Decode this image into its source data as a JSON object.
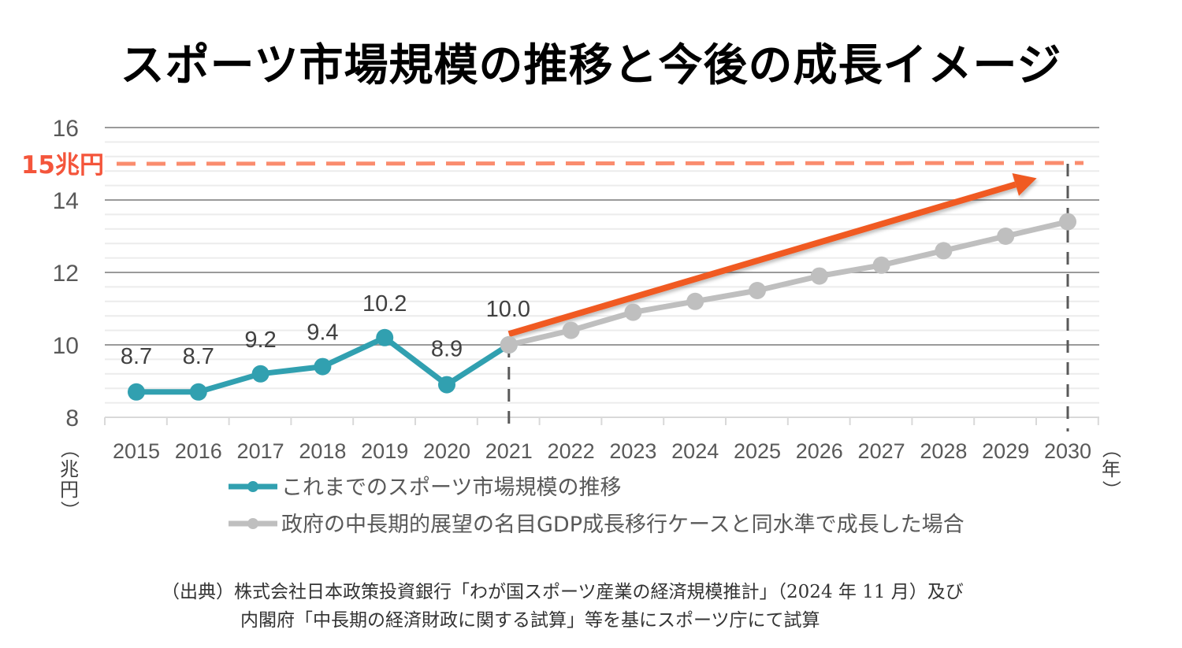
{
  "title": "スポーツ市場規模の推移と今後の成長イメージ",
  "chart_data": {
    "type": "line",
    "title": "スポーツ市場規模の推移と今後の成長イメージ",
    "xlabel": "（年）",
    "ylabel": "（兆円）",
    "x": [
      2015,
      2016,
      2017,
      2018,
      2019,
      2020,
      2021,
      2022,
      2023,
      2024,
      2025,
      2026,
      2027,
      2028,
      2029,
      2030
    ],
    "ylim": [
      8,
      16
    ],
    "y_ticks": [
      8,
      10,
      12,
      14,
      16
    ],
    "x_tick_labels": [
      "2015",
      "2016",
      "2017",
      "2018",
      "2019",
      "2020",
      "2021",
      "2022",
      "2023",
      "2024",
      "2025",
      "2026",
      "2027",
      "2028",
      "2029",
      "2030"
    ],
    "grid": true,
    "minor_grid": true,
    "series": [
      {
        "name": "これまでのスポーツ市場規模の推移",
        "color": "#31a0b0",
        "x": [
          2015,
          2016,
          2017,
          2018,
          2019,
          2020,
          2021
        ],
        "values": [
          8.7,
          8.7,
          9.2,
          9.4,
          10.2,
          8.9,
          10.0
        ],
        "data_labels": [
          "8.7",
          "8.7",
          "9.2",
          "9.4",
          "10.2",
          "8.9",
          "10.0"
        ]
      },
      {
        "name": "政府の中長期的展望の名目GDP成長移行ケースと同水準で成長した場合",
        "color": "#bfbfbf",
        "x": [
          2021,
          2022,
          2023,
          2024,
          2025,
          2026,
          2027,
          2028,
          2029,
          2030
        ],
        "values": [
          10.0,
          10.4,
          10.9,
          11.2,
          11.5,
          11.9,
          12.2,
          12.6,
          13.0,
          13.4
        ]
      }
    ],
    "annotations": {
      "target_line": {
        "value": 15,
        "label": "15兆円",
        "color": "#fa8c6e"
      },
      "growth_arrow": {
        "from": [
          2021,
          10.3
        ],
        "to": [
          2029.5,
          14.6
        ],
        "color": "#f05a22"
      },
      "vertical_markers": [
        2021,
        2030
      ]
    },
    "legend": "bottom-left"
  },
  "source": {
    "line1": "（出典）株式会社日本政策投資銀行「わが国スポーツ産業の経済規模推計」（2024 年 11 月）及び",
    "line2": "内閣府「中長期の経済財政に関する試算」等を基にスポーツ庁にて試算"
  }
}
